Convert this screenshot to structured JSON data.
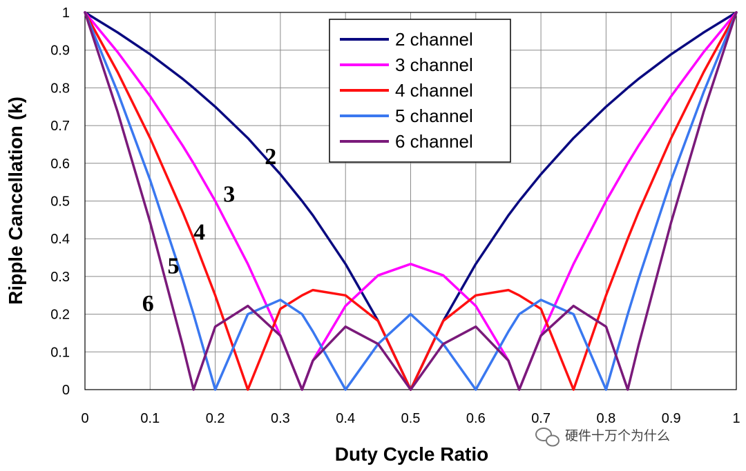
{
  "chart_data": {
    "type": "line",
    "xlabel": "Duty Cycle Ratio",
    "ylabel": "Ripple Cancellation (k)",
    "xlim": [
      0,
      1
    ],
    "ylim": [
      0,
      1
    ],
    "x_ticks": [
      "0",
      "0.1",
      "0.2",
      "0.3",
      "0.4",
      "0.5",
      "0.6",
      "0.7",
      "0.8",
      "0.9",
      "1"
    ],
    "y_ticks": [
      "0",
      "0.1",
      "0.2",
      "0.3",
      "0.4",
      "0.5",
      "0.6",
      "0.7",
      "0.8",
      "0.9",
      "1"
    ],
    "grid": true,
    "legend_position": "top-center",
    "x": [
      0,
      0.05,
      0.1,
      0.15,
      0.1667,
      0.2,
      0.25,
      0.3,
      0.3333,
      0.35,
      0.4,
      0.45,
      0.5,
      0.55,
      0.6,
      0.65,
      0.6667,
      0.7,
      0.75,
      0.8,
      0.8333,
      0.85,
      0.9,
      0.95,
      1
    ],
    "series": [
      {
        "name": "2 channel",
        "color": "#0a0a80",
        "curve_label": "2",
        "values": [
          1,
          0.947,
          0.889,
          0.824,
          0.8,
          0.75,
          0.667,
          0.571,
          0.5,
          0.462,
          0.333,
          0.182,
          0,
          0.182,
          0.333,
          0.462,
          0.5,
          0.571,
          0.667,
          0.75,
          0.8,
          0.824,
          0.889,
          0.947,
          1
        ]
      },
      {
        "name": "3 channel",
        "color": "#ff00ff",
        "curve_label": "3",
        "values": [
          1,
          0.895,
          0.778,
          0.647,
          0.6,
          0.5,
          0.333,
          0.143,
          0,
          0.077,
          0.222,
          0.303,
          0.333,
          0.303,
          0.222,
          0.077,
          0,
          0.143,
          0.333,
          0.5,
          0.6,
          0.647,
          0.778,
          0.895,
          1
        ]
      },
      {
        "name": "4 channel",
        "color": "#ff1010",
        "curve_label": "4",
        "values": [
          1,
          0.842,
          0.667,
          0.471,
          0.4,
          0.25,
          0,
          0.214,
          0.25,
          0.264,
          0.25,
          0.182,
          0,
          0.182,
          0.25,
          0.264,
          0.25,
          0.214,
          0,
          0.25,
          0.4,
          0.471,
          0.667,
          0.842,
          1
        ]
      },
      {
        "name": "5 channel",
        "color": "#3a78f0",
        "curve_label": "5",
        "values": [
          1,
          0.789,
          0.556,
          0.294,
          0.2,
          0,
          0.2,
          0.238,
          0.2,
          0.154,
          0,
          0.121,
          0.2,
          0.121,
          0,
          0.154,
          0.2,
          0.238,
          0.2,
          0,
          0.2,
          0.294,
          0.556,
          0.789,
          1
        ]
      },
      {
        "name": "6 channel",
        "color": "#7a1a7a",
        "curve_label": "6",
        "values": [
          1,
          0.737,
          0.444,
          0.118,
          0,
          0.167,
          0.222,
          0.143,
          0,
          0.077,
          0.167,
          0.121,
          0,
          0.121,
          0.167,
          0.077,
          0,
          0.143,
          0.222,
          0.167,
          0,
          0.118,
          0.444,
          0.737,
          1
        ]
      }
    ]
  },
  "watermark": {
    "text": "硬件十万个为什么",
    "icon": "wechat-icon"
  }
}
